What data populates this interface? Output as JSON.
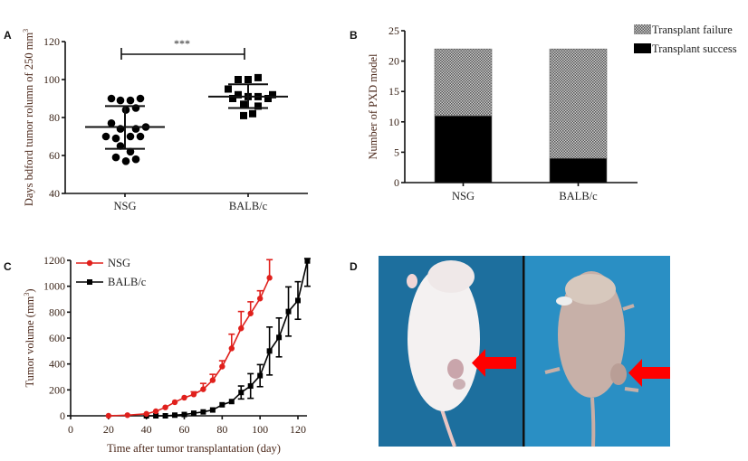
{
  "panels": {
    "A": "A",
    "B": "B",
    "C": "C",
    "D": "D"
  },
  "chart_data": [
    {
      "panel": "A",
      "type": "scatter",
      "ylabel": "Days bdford tumor rolumn of 250 mm",
      "ylabel_superscript": "3",
      "ylim": [
        40,
        120
      ],
      "yticks": [
        "40",
        "60",
        "80",
        "100",
        "120"
      ],
      "categories": [
        "NSG",
        "BALB/c"
      ],
      "series": [
        {
          "name": "NSG",
          "marker": "circle",
          "values": [
            90,
            89,
            89,
            90,
            85,
            84,
            77,
            74,
            74,
            75,
            70,
            69,
            70,
            70,
            65,
            62,
            59,
            58,
            57
          ],
          "mean": 75,
          "sd_range": [
            63.5,
            86
          ]
        },
        {
          "name": "BALB/c",
          "marker": "square",
          "values": [
            100,
            100,
            101,
            95,
            92,
            91,
            91,
            92,
            90,
            90,
            87,
            86,
            81,
            82
          ],
          "mean": 91,
          "sd_range": [
            85,
            97.5
          ]
        }
      ],
      "significance": "***",
      "grid": false
    },
    {
      "panel": "B",
      "type": "bar",
      "stacked": true,
      "ylabel": "Number of PXD model",
      "ylim": [
        0,
        25
      ],
      "yticks": [
        "0",
        "5",
        "10",
        "15",
        "20",
        "25"
      ],
      "categories": [
        "NSG",
        "BALB/c"
      ],
      "series": [
        {
          "name": "Transplant success",
          "values": [
            11,
            4
          ],
          "fill": "#000000"
        },
        {
          "name": "Transplant failure",
          "values": [
            11,
            18
          ],
          "fill": "checkered"
        }
      ],
      "legend": "top-right",
      "grid": false
    },
    {
      "panel": "C",
      "type": "line",
      "xlabel": "Time after tumor transplantation (day)",
      "ylabel": "Tumor volume (mm",
      "ylabel_superscript": "3",
      "ylabel_suffix": ")",
      "xlim": [
        0,
        125
      ],
      "ylim": [
        0,
        1200
      ],
      "xticks": [
        "0",
        "20",
        "40",
        "60",
        "80",
        "100",
        "120"
      ],
      "yticks": [
        "0",
        "200",
        "400",
        "600",
        "800",
        "1000",
        "1200"
      ],
      "series": [
        {
          "name": "NSG",
          "color": "#e0201c",
          "marker": "circle",
          "x": [
            20,
            30,
            40,
            45,
            50,
            55,
            60,
            65,
            70,
            75,
            80,
            85,
            90,
            95,
            100,
            105
          ],
          "y": [
            0,
            5,
            15,
            35,
            65,
            105,
            140,
            165,
            205,
            275,
            380,
            520,
            675,
            790,
            905,
            1065
          ],
          "error": [
            0,
            0,
            0,
            0,
            0,
            0,
            0,
            20,
            45,
            45,
            45,
            110,
            130,
            90,
            60,
            140
          ]
        },
        {
          "name": "BALB/c",
          "color": "#000000",
          "marker": "square",
          "x": [
            40,
            45,
            50,
            55,
            60,
            65,
            70,
            75,
            80,
            85,
            90,
            95,
            100,
            105,
            110,
            115,
            120,
            125
          ],
          "y": [
            0,
            0,
            0,
            5,
            10,
            20,
            30,
            45,
            85,
            110,
            180,
            230,
            310,
            500,
            605,
            805,
            890,
            1195
          ],
          "error": [
            0,
            0,
            0,
            0,
            0,
            0,
            0,
            0,
            0,
            0,
            50,
            95,
            85,
            185,
            150,
            190,
            145,
            195
          ]
        }
      ],
      "legend": "top-left",
      "grid": false
    }
  ],
  "photo": {
    "left": "BALB/c mouse with tumor (fur)",
    "right": "NSG nude mouse with tumor",
    "arrow_color": "#ff0000",
    "background_color": "#1f7fb0"
  }
}
